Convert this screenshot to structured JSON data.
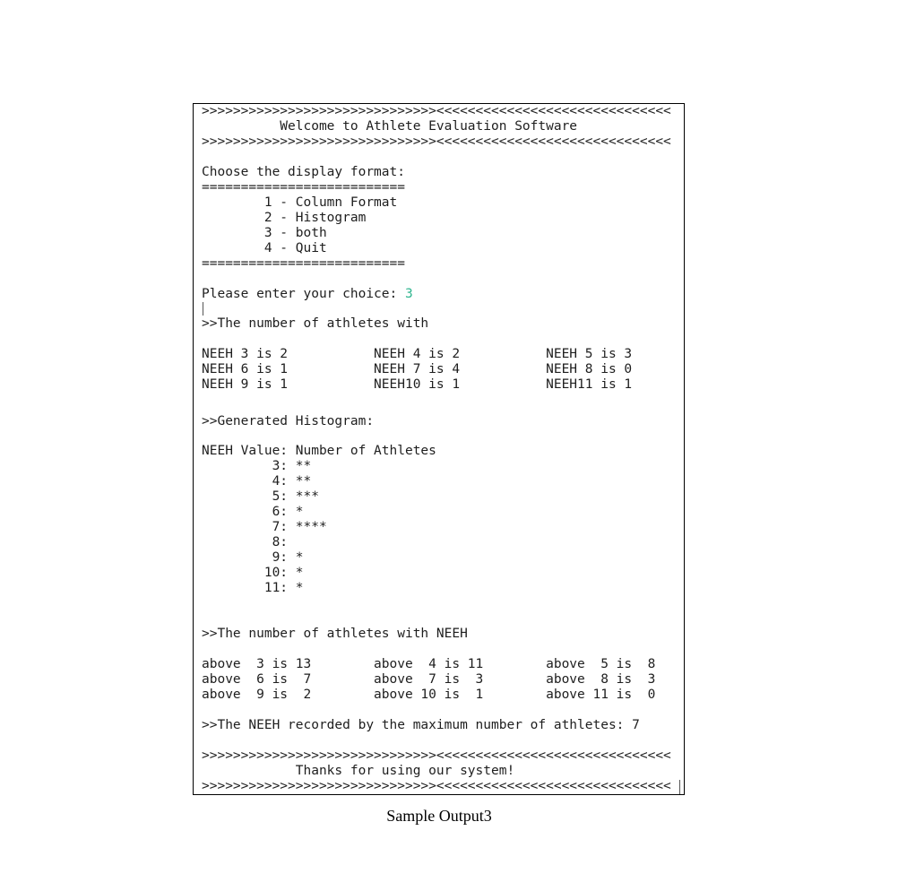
{
  "console": {
    "header": {
      "banner_top": ">>>>>>>>>>>>>>>>>>>>>>>>>>>>>><<<<<<<<<<<<<<<<<<<<<<<<<<<<<<",
      "title": "          Welcome to Athlete Evaluation Software",
      "banner_bottom": ">>>>>>>>>>>>>>>>>>>>>>>>>>>>>><<<<<<<<<<<<<<<<<<<<<<<<<<<<<<"
    },
    "menu": {
      "prompt": "Choose the display format:",
      "rule_top": "==========================",
      "options": [
        "        1 - Column Format",
        "        2 - Histogram",
        "        3 - both",
        "        4 - Quit"
      ],
      "rule_bottom": "=========================="
    },
    "choice": {
      "prompt": "Please enter your choice: ",
      "value": "3"
    },
    "counts": {
      "heading": ">>The number of athletes with",
      "rows": [
        "NEEH 3 is 2           NEEH 4 is 2           NEEH 5 is 3",
        "NEEH 6 is 1           NEEH 7 is 4           NEEH 8 is 0",
        "NEEH 9 is 1           NEEH10 is 1           NEEH11 is 1"
      ]
    },
    "histogram": {
      "heading": ">>Generated Histogram:",
      "column_header": "NEEH Value: Number of Athletes",
      "rows": [
        "         3: **",
        "         4: **",
        "         5: ***",
        "         6: *",
        "         7: ****",
        "         8:",
        "         9: *",
        "        10: *",
        "        11: *"
      ]
    },
    "above": {
      "heading": ">>The number of athletes with NEEH",
      "rows": [
        "above  3 is 13        above  4 is 11        above  5 is  8",
        "above  6 is  7        above  7 is  3        above  8 is  3",
        "above  9 is  2        above 10 is  1        above 11 is  0"
      ]
    },
    "max_line": ">>The NEEH recorded by the maximum number of athletes: 7",
    "footer": {
      "banner_top": ">>>>>>>>>>>>>>>>>>>>>>>>>>>>>><<<<<<<<<<<<<<<<<<<<<<<<<<<<<<",
      "message": "            Thanks for using our system!",
      "banner_bottom": ">>>>>>>>>>>>>>>>>>>>>>>>>>>>>><<<<<<<<<<<<<<<<<<<<<<<<<<<<<<"
    }
  },
  "caption": "Sample Output3",
  "colors": {
    "input_value": "#2fb58f",
    "text": "#1e1e1e",
    "border": "#000000"
  }
}
